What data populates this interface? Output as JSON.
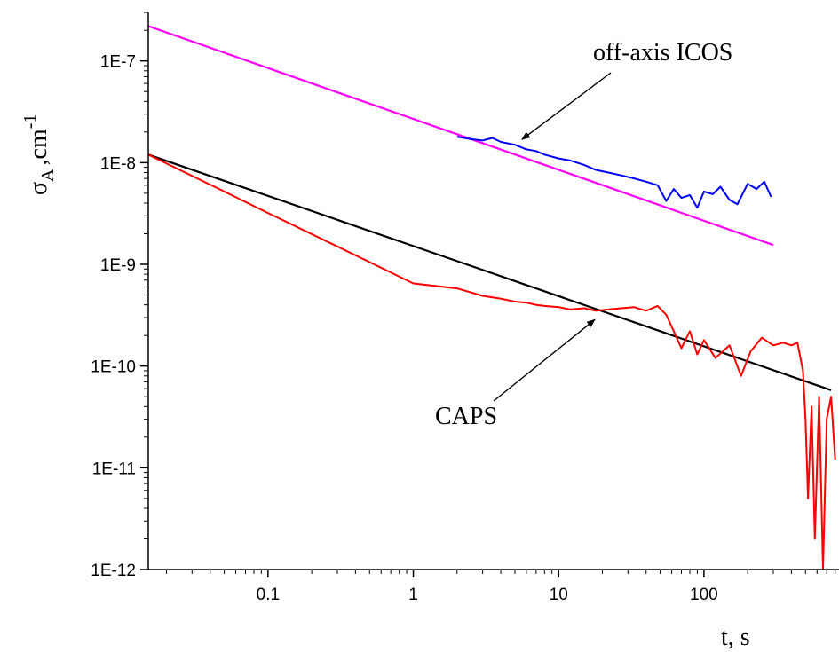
{
  "chart_data": {
    "type": "line",
    "xscale": "log",
    "yscale": "log",
    "xlim": [
      0.015,
      850
    ],
    "ylim": [
      1e-12,
      3e-07
    ],
    "xlabel": "t, s",
    "ylabel_main": "σ",
    "ylabel_sub": "A",
    "ylabel_unit": ",cm",
    "ylabel_sup": "-1",
    "xticks": [
      {
        "value": 0.1,
        "label": "0.1"
      },
      {
        "value": 1,
        "label": "1"
      },
      {
        "value": 10,
        "label": "10"
      },
      {
        "value": 100,
        "label": "100"
      }
    ],
    "yticks": [
      {
        "value": 1e-07,
        "label": "1E-7"
      },
      {
        "value": 1e-08,
        "label": "1E-8"
      },
      {
        "value": 1e-09,
        "label": "1E-9"
      },
      {
        "value": 1e-10,
        "label": "1E-10"
      },
      {
        "value": 1e-11,
        "label": "1E-11"
      },
      {
        "value": 1e-12,
        "label": "1E-12"
      }
    ],
    "grid": false,
    "series": [
      {
        "color": "#ff00ff",
        "style": "fit",
        "x": [
          0.015,
          300
        ],
        "y": [
          2.2e-07,
          1.55e-09
        ]
      },
      {
        "color": "#000000",
        "style": "fit",
        "x": [
          0.015,
          750
        ],
        "y": [
          1.2e-08,
          5.8e-11
        ]
      },
      {
        "color": "#0000ff",
        "style": "data",
        "x": [
          2,
          2.5,
          3,
          3.5,
          4,
          5,
          6,
          7,
          8,
          10,
          12,
          15,
          18,
          22,
          27,
          33,
          40,
          48,
          55,
          62,
          70,
          80,
          90,
          100,
          115,
          130,
          150,
          170,
          200,
          230,
          260,
          290
        ],
        "y": [
          1.8e-08,
          1.7e-08,
          1.65e-08,
          1.75e-08,
          1.6e-08,
          1.5e-08,
          1.35e-08,
          1.3e-08,
          1.2e-08,
          1.1e-08,
          1.05e-08,
          9.5e-09,
          8.5e-09,
          8e-09,
          7.5e-09,
          7e-09,
          6.5e-09,
          6e-09,
          4.2e-09,
          5.5e-09,
          4.5e-09,
          4.8e-09,
          3.6e-09,
          5.2e-09,
          4.9e-09,
          5.8e-09,
          4.3e-09,
          3.9e-09,
          6.2e-09,
          5.5e-09,
          6.5e-09,
          4.6e-09
        ]
      },
      {
        "color": "#ff0000",
        "style": "data",
        "x": [
          0.015,
          0.05,
          0.1,
          0.3,
          1,
          2,
          3,
          4,
          5,
          6,
          7,
          8,
          10,
          12,
          15,
          18,
          22,
          27,
          33,
          40,
          48,
          55,
          62,
          70,
          80,
          90,
          100,
          120,
          150,
          180,
          210,
          250,
          300,
          350,
          400,
          440,
          480,
          500,
          520,
          550,
          580,
          620,
          660,
          700,
          750,
          800
        ],
        "y": [
          1.2e-08,
          5.2e-09,
          3.2e-09,
          1.5e-09,
          6.5e-10,
          5.8e-10,
          4.9e-10,
          4.6e-10,
          4.3e-10,
          4.2e-10,
          4e-10,
          3.9e-10,
          3.8e-10,
          3.6e-10,
          3.7e-10,
          3.5e-10,
          3.6e-10,
          3.7e-10,
          3.8e-10,
          3.5e-10,
          3.9e-10,
          3.2e-10,
          2.2e-10,
          1.5e-10,
          2.2e-10,
          1.3e-10,
          1.8e-10,
          1.2e-10,
          1.6e-10,
          8e-11,
          1.4e-10,
          1.9e-10,
          1.6e-10,
          1.7e-10,
          1.6e-10,
          1.7e-10,
          9e-11,
          3e-11,
          5e-12,
          4e-11,
          2e-12,
          5e-11,
          1e-12,
          3e-11,
          5e-11,
          1.2e-11
        ]
      }
    ],
    "annotations": [
      {
        "text": "off-axis ICOS",
        "target": [
          5,
          1.5e-08
        ]
      },
      {
        "text": "CAPS",
        "target": [
          15,
          3.5e-10
        ]
      }
    ]
  }
}
